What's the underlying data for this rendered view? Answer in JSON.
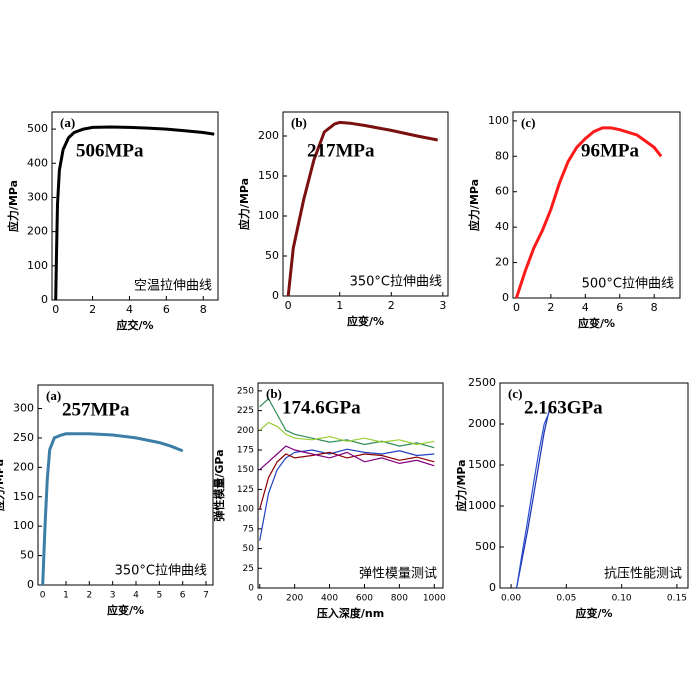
{
  "chart_data": [
    {
      "type": "line",
      "panel_label": "(a)",
      "annotation": "506MPa",
      "annotation_color": "#000000",
      "caption": "空温拉伸曲线",
      "xlabel": "应交/%",
      "ylabel": "应力/MPa",
      "xlim": [
        -0.2,
        8.8
      ],
      "xticks": [
        0,
        2,
        4,
        6,
        8
      ],
      "ylim": [
        0,
        550
      ],
      "yticks": [
        0,
        100,
        200,
        300,
        400,
        500
      ],
      "color": "#000000",
      "x": [
        0,
        0.05,
        0.1,
        0.2,
        0.4,
        0.7,
        1,
        1.5,
        2,
        3,
        4,
        5,
        6,
        7,
        8,
        8.6
      ],
      "values": [
        0,
        150,
        280,
        380,
        440,
        475,
        490,
        500,
        505,
        506,
        505,
        503,
        500,
        495,
        490,
        485
      ]
    },
    {
      "type": "line",
      "panel_label": "(b)",
      "annotation": "217MPa",
      "annotation_color": "#8b1a1a",
      "caption": "350°C拉伸曲线",
      "xlabel": "应变/%",
      "ylabel": "应力/MPa",
      "xlim": [
        -0.1,
        3.1
      ],
      "xticks": [
        0,
        1,
        2,
        3
      ],
      "ylim": [
        0,
        230
      ],
      "yticks": [
        0,
        50,
        100,
        150,
        200
      ],
      "color": "#7a1010",
      "x": [
        0,
        0.1,
        0.3,
        0.5,
        0.7,
        0.9,
        1,
        1.2,
        1.5,
        2,
        2.5,
        2.9
      ],
      "values": [
        0,
        60,
        120,
        170,
        205,
        215,
        217,
        216,
        213,
        207,
        200,
        195
      ]
    },
    {
      "type": "line",
      "panel_label": "(c)",
      "annotation": "96MPa",
      "annotation_color": "#ff1a1a",
      "caption": "500°C拉伸曲线",
      "xlabel": "应变/%",
      "ylabel": "应力/MPa",
      "xlim": [
        -0.2,
        9.5
      ],
      "xticks": [
        0,
        2,
        4,
        6,
        8
      ],
      "ylim": [
        0,
        105
      ],
      "yticks": [
        0,
        20,
        40,
        60,
        80,
        100
      ],
      "color": "#ff1a1a",
      "x": [
        0,
        0.5,
        1,
        1.5,
        2,
        2.5,
        3,
        3.5,
        4,
        4.5,
        5,
        5.5,
        6,
        7,
        8,
        8.4
      ],
      "values": [
        0,
        15,
        28,
        38,
        50,
        65,
        77,
        85,
        90,
        94,
        96,
        96,
        95,
        92,
        85,
        80
      ]
    },
    {
      "type": "line",
      "panel_label": "(a)",
      "annotation": "257MPa",
      "annotation_color": "#ff1a1a",
      "caption": "350°C拉伸曲线",
      "xlabel": "应变/%",
      "ylabel": "应力/MPa",
      "xlim": [
        -0.2,
        7.3
      ],
      "xticks": [
        0,
        1,
        2,
        3,
        4,
        5,
        6,
        7
      ],
      "ylim": [
        0,
        340
      ],
      "yticks": [
        0,
        50,
        100,
        150,
        200,
        250,
        300
      ],
      "color": "#3d7ea6",
      "x": [
        0,
        0.1,
        0.2,
        0.3,
        0.5,
        0.8,
        1,
        1.5,
        2,
        3,
        4,
        5,
        5.5,
        6
      ],
      "values": [
        0,
        100,
        180,
        230,
        250,
        255,
        257,
        257,
        257,
        255,
        250,
        242,
        236,
        228
      ]
    },
    {
      "type": "line",
      "panel_label": "(b)",
      "annotation": "174.6GPa",
      "annotation_color": "#ff1a1a",
      "caption": "弹性模量测试",
      "xlabel": "压入深度/nm",
      "ylabel": "弹性模量/GPa",
      "xlim": [
        -10,
        1050
      ],
      "xticks": [
        0,
        200,
        400,
        600,
        800,
        1000
      ],
      "ylim": [
        0,
        260
      ],
      "yticks": [
        0,
        25,
        50,
        75,
        100,
        125,
        150,
        175,
        200,
        225,
        250
      ],
      "x": [
        0,
        50,
        100,
        150,
        200,
        300,
        400,
        500,
        600,
        700,
        800,
        900,
        1000
      ],
      "series": [
        {
          "color": "#2e8b57",
          "values": [
            230,
            240,
            220,
            200,
            195,
            190,
            185,
            188,
            182,
            186,
            180,
            184,
            178
          ]
        },
        {
          "color": "#1f3fbf",
          "values": [
            60,
            120,
            150,
            165,
            172,
            175,
            170,
            176,
            172,
            170,
            174,
            168,
            170
          ]
        },
        {
          "color": "#8b0000",
          "values": [
            100,
            140,
            160,
            170,
            165,
            168,
            172,
            165,
            170,
            168,
            162,
            166,
            160
          ]
        },
        {
          "color": "#9acd32",
          "values": [
            200,
            210,
            205,
            195,
            190,
            188,
            192,
            186,
            190,
            185,
            188,
            182,
            186
          ]
        },
        {
          "color": "#800080",
          "values": [
            150,
            160,
            170,
            180,
            175,
            170,
            165,
            172,
            160,
            165,
            158,
            162,
            155
          ]
        }
      ]
    },
    {
      "type": "line",
      "panel_label": "(c)",
      "annotation": "2.163GPa",
      "annotation_color": "#ff1a1a",
      "caption": "抗压性能测试",
      "xlabel": "应变/%",
      "ylabel": "应力/MPa",
      "xlim": [
        -0.01,
        0.16
      ],
      "xticks": [
        {
          "value": 0,
          "label": "0.00"
        },
        0.05,
        {
          "value": 0.1,
          "label": "0.10"
        },
        0.15
      ],
      "ylim": [
        0,
        2500
      ],
      "yticks": [
        0,
        500,
        1000,
        1500,
        2000,
        2500
      ],
      "x": [
        0.005,
        0.01,
        0.015,
        0.02,
        0.025,
        0.03,
        0.035
      ],
      "series": [
        {
          "color": "#1a2fb0",
          "values": [
            0,
            350,
            700,
            1100,
            1500,
            1900,
            2200
          ]
        },
        {
          "color": "#2a4fd0",
          "values": [
            0,
            420,
            820,
            1250,
            1650,
            2000,
            2163
          ]
        }
      ]
    }
  ]
}
